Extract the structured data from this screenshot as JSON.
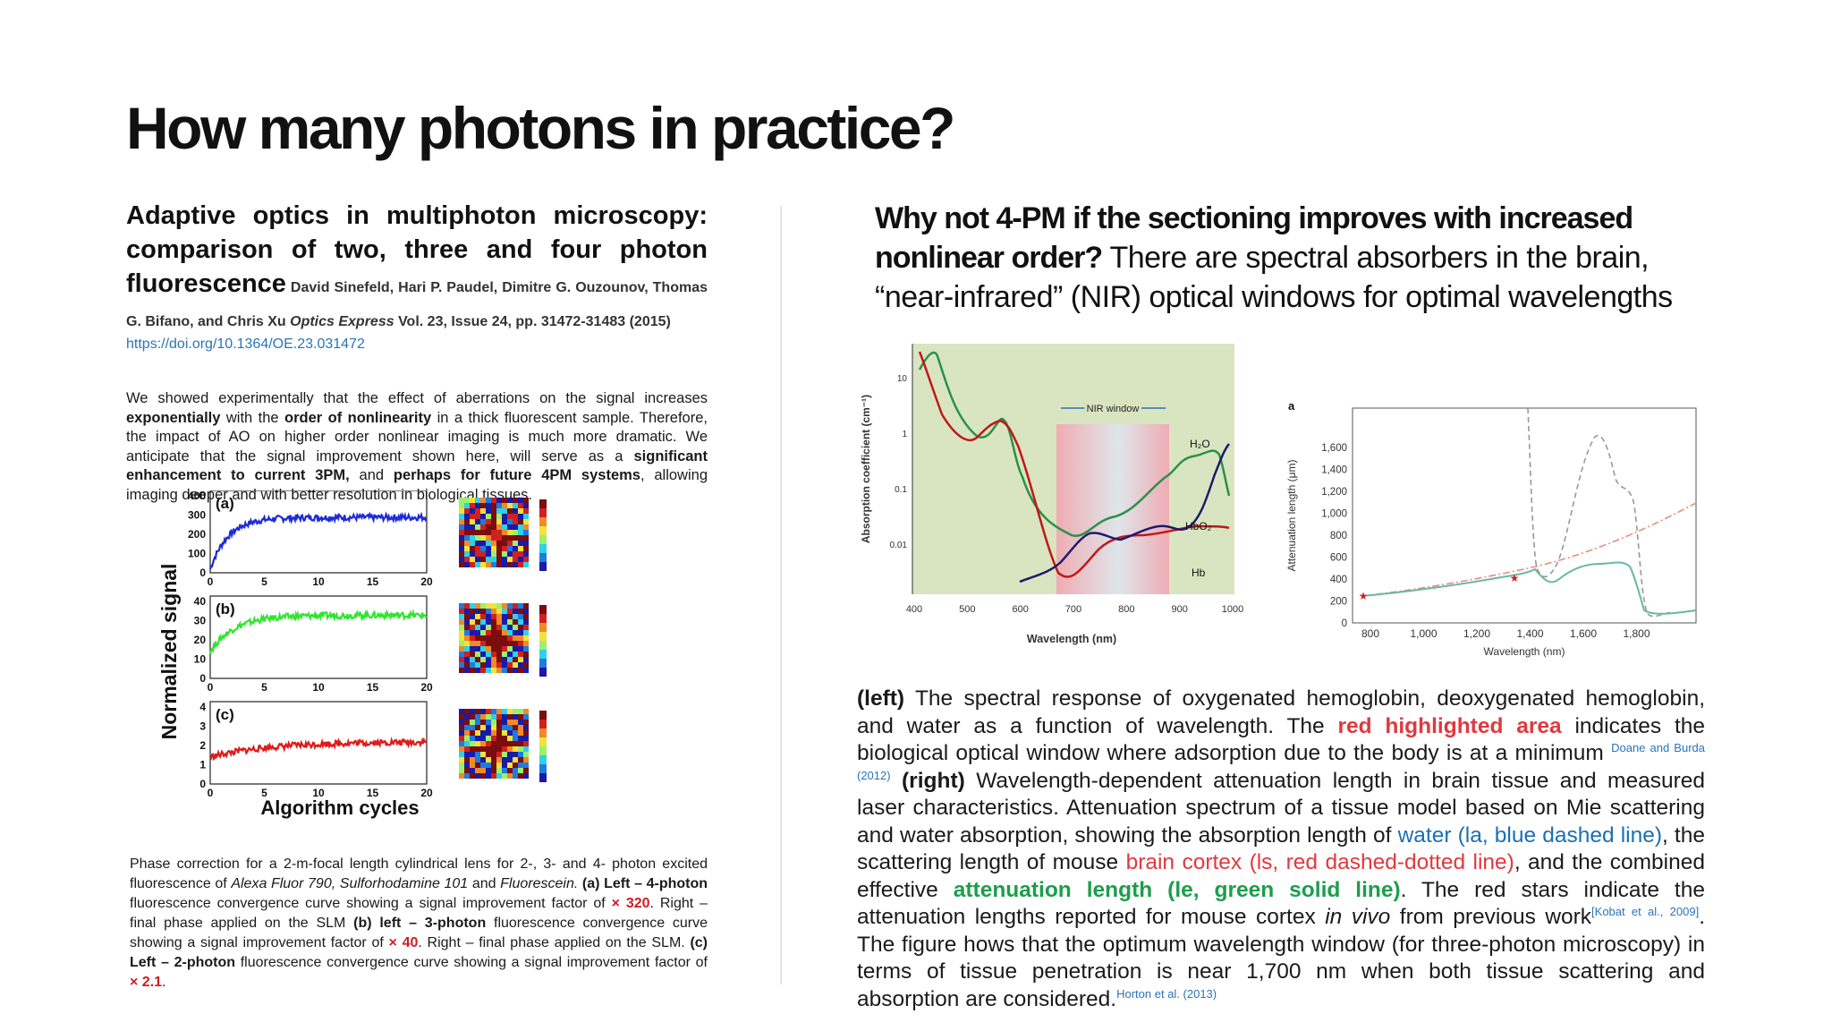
{
  "slide": {
    "title": "How many photons in practice?"
  },
  "left": {
    "paper_title": "Adaptive optics in multiphoton microscopy: comparison of two, three and four photon fluorescence",
    "authors": " David Sinefeld, Hari P. Paudel, Dimitre G. Ouzounov, Thomas G. Bifano, and Chris Xu ",
    "journal": "Optics Express",
    "volume": " Vol. 23, Issue 24, pp. 31472-31483 (2015)",
    "doi": "https://doi.org/10.1364/OE.23.031472",
    "abstract": {
      "p1": "We showed experimentally that the effect of aberrations on the signal increases ",
      "b1": "exponentially",
      "p2": " with the ",
      "b2": "order of nonlinearity",
      "p3": " in a thick fluorescent sample. Therefore, the impact of AO on higher order nonlinear imaging is much more dramatic. We anticipate that the signal improvement shown here, will serve as a ",
      "b3": "significant enhancement to current 3PM,",
      "p4": " and ",
      "b4": "perhaps for future 4PM systems",
      "p5": ", allowing imaging deeper and with better resolution in biological tissues."
    },
    "figure": {
      "ylabel": "Normalized signal",
      "xlabel": "Algorithm cycles",
      "panels": [
        {
          "label": "(a)",
          "yticks": [
            "0",
            "100",
            "200",
            "300",
            "400"
          ],
          "xticks": [
            "0",
            "5",
            "10",
            "15",
            "20"
          ]
        },
        {
          "label": "(b)",
          "yticks": [
            "0",
            "10",
            "20",
            "30",
            "40"
          ],
          "xticks": [
            "0",
            "5",
            "10",
            "15",
            "20"
          ]
        },
        {
          "label": "(c)",
          "yticks": [
            "0",
            "1",
            "2",
            "3",
            "4"
          ],
          "xticks": [
            "0",
            "5",
            "10",
            "15",
            "20"
          ]
        }
      ],
      "colors": {
        "a": "#1f2bd6",
        "b": "#2ee62e",
        "c": "#e01a1a"
      }
    },
    "caption": {
      "t1": "Phase correction for a 2-m-focal length cylindrical lens for 2-, 3- and 4- photon excited fluorescence of ",
      "i1": "Alexa Fluor 790, Sulforhodamine 101",
      "t2": " and ",
      "i2": "Fluorescein.",
      "b1": " (a) Left – 4-photon",
      "t3": " fluorescence convergence curve showing a signal improvement factor of ",
      "r1": "× 320",
      "t4": ". Right – final phase applied on the SLM ",
      "b2": "(b) left – 3-photon",
      "t5": " fluorescence convergence curve showing a signal improvement factor of ",
      "r2": "× 40",
      "t6": ". Right – final phase applied on the SLM. ",
      "b3": "(c) Left – 2-photon",
      "t7": " fluorescence convergence curve showing a signal improvement factor of ",
      "r3": "× 2.1",
      "t8": "."
    }
  },
  "right": {
    "heading_bold": "Why not 4-PM if the sectioning improves with increased nonlinear order?",
    "heading_rest": " There are spectral absorbers in the brain, “near-infrared” (NIR) optical windows for optimal wavelengths",
    "body": {
      "left_label": "(left)",
      "s1": " The spectral response of oxygenated hemoglobin, deoxygenated hemoglobin, and water as a function of wavelength. The ",
      "red_area": "red highlighted area",
      "s2": " indicates the biological optical window where adsorption due to the body is at a minimum ",
      "cite1": "Doane and Burda (2012)",
      "right_label": " (right)",
      "s3": " Wavelength-dependent attenuation length in brain tissue and measured laser characteristics. Attenuation spectrum of a tissue model based on Mie scattering and water absorption, showing the absorption length of ",
      "water": "water (la, blue dashed line)",
      "s4": ", the scattering length of mouse ",
      "cortex": "brain cortex (ls, red dashed-dotted line)",
      "s5": ", and the combined effective ",
      "atten": "attenuation length (le, green solid line)",
      "s6": ". The red stars indicate the attenuation lengths reported for mouse cortex ",
      "invivo": "in vivo",
      "s7": " from previous work",
      "cite2": "[Kobat et al., 2009]",
      "s8": ". The figure hows that the optimum wavelength window (for three-photon microscopy) in terms of tissue penetration is near 1,700 nm when both tissue scattering and absorption are considered.",
      "cite3": "Horton et al. (2013)"
    },
    "absorption_chart": {
      "ylabel": "Absorption coefficient (cm⁻¹)",
      "xlabel": "Wavelength (nm)",
      "xticks": [
        "400",
        "500",
        "600",
        "700",
        "800",
        "900",
        "1000"
      ],
      "yticks": [
        "10",
        "1",
        "0.1",
        "0.01"
      ],
      "window_label": "NIR window",
      "series": [
        "H₂O",
        "HbO₂",
        "Hb"
      ]
    },
    "attenuation_chart": {
      "panel_label": "a",
      "ylabel": "Attenuation length (μm)",
      "xlabel": "Wavelength (nm)",
      "xticks": [
        "800",
        "1,000",
        "1,200",
        "1,400",
        "1,600",
        "1,800"
      ],
      "yticks": [
        "0",
        "200",
        "400",
        "600",
        "800",
        "1,000",
        "1,200",
        "1,400",
        "1,600"
      ]
    }
  }
}
